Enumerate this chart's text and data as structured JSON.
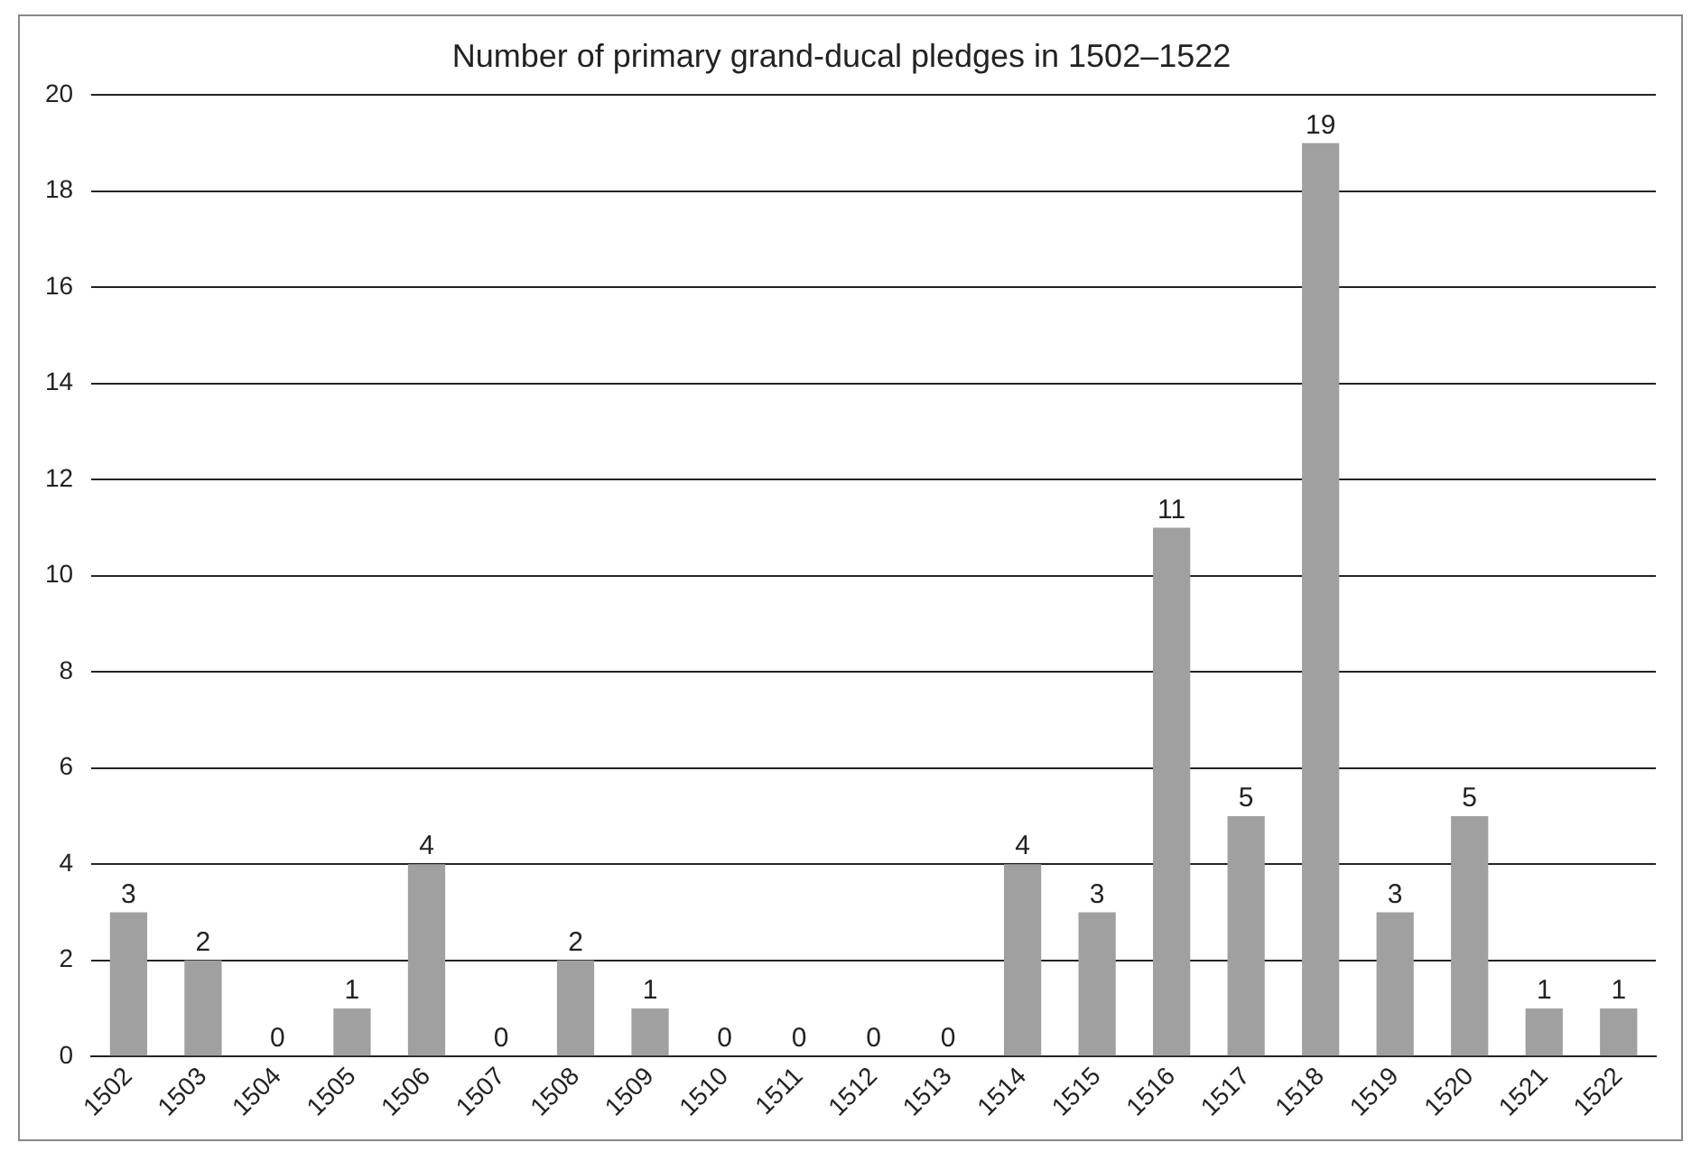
{
  "chart_data": {
    "type": "bar",
    "title": "Number of primary grand-ducal pledges in 1502–1522",
    "categories": [
      "1502",
      "1503",
      "1504",
      "1505",
      "1506",
      "1507",
      "1508",
      "1509",
      "1510",
      "1511",
      "1512",
      "1513",
      "1514",
      "1515",
      "1516",
      "1517",
      "1518",
      "1519",
      "1520",
      "1521",
      "1522"
    ],
    "values": [
      3,
      2,
      0,
      1,
      4,
      0,
      2,
      1,
      0,
      0,
      0,
      0,
      4,
      3,
      11,
      5,
      19,
      3,
      5,
      1,
      1
    ],
    "color": "#a0a0a0",
    "ylim": [
      0,
      20
    ],
    "yticks": [
      0,
      2,
      4,
      6,
      8,
      10,
      12,
      14,
      16,
      18,
      20
    ],
    "grid": "y",
    "legend": false,
    "data_labels": true
  }
}
